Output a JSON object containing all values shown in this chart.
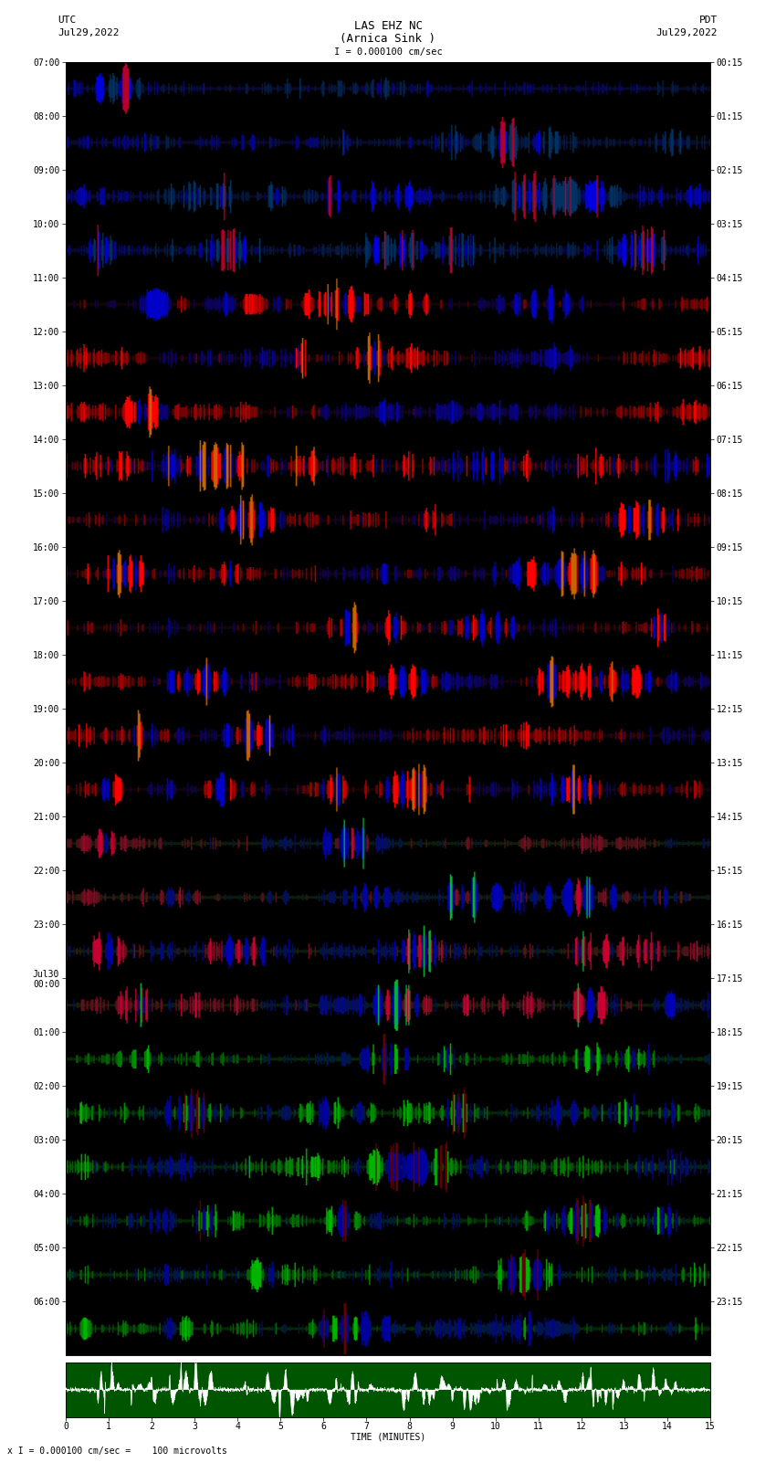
{
  "title_line1": "LAS EHZ NC",
  "title_line2": "(Arnica Sink )",
  "scale_label": "I = 0.000100 cm/sec",
  "left_label_top": "UTC",
  "left_label_date": "Jul29,2022",
  "right_label_top": "PDT",
  "right_label_date": "Jul29,2022",
  "left_ticks": [
    "07:00",
    "08:00",
    "09:00",
    "10:00",
    "11:00",
    "12:00",
    "13:00",
    "14:00",
    "15:00",
    "16:00",
    "17:00",
    "18:00",
    "19:00",
    "20:00",
    "21:00",
    "22:00",
    "23:00",
    "Jul30\n00:00",
    "01:00",
    "02:00",
    "03:00",
    "04:00",
    "05:00",
    "06:00"
  ],
  "right_ticks": [
    "00:15",
    "01:15",
    "02:15",
    "03:15",
    "04:15",
    "05:15",
    "06:15",
    "07:15",
    "08:15",
    "09:15",
    "10:15",
    "11:15",
    "12:15",
    "13:15",
    "14:15",
    "15:15",
    "16:15",
    "17:15",
    "18:15",
    "19:15",
    "20:15",
    "21:15",
    "22:15",
    "23:15"
  ],
  "bottom_xlabel": "TIME (MINUTES)",
  "bottom_note": "x I = 0.000100 cm/sec =    100 microvolts",
  "fig_width": 8.5,
  "fig_height": 16.13
}
